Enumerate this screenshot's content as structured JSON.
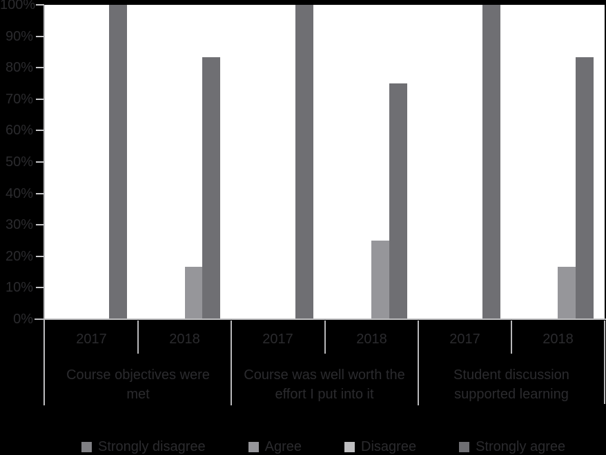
{
  "colors": {
    "page_background": "#000000",
    "plot_background": "#ffffff",
    "text": "#2b2b2e",
    "axis_lines": "#bdbdbf"
  },
  "chart_data": {
    "type": "bar",
    "title": "",
    "xlabel": "",
    "ylabel": "",
    "ylim": [
      0,
      100
    ],
    "ytick_step": 10,
    "ytick_labels": [
      "0%",
      "10%",
      "20%",
      "30%",
      "40%",
      "50%",
      "60%",
      "70%",
      "80%",
      "90%",
      "100%"
    ],
    "grid": false,
    "legend_position": "bottom",
    "groups": [
      {
        "label": "Course objectives were met",
        "label_lines": [
          "Course objectives were",
          "met"
        ],
        "years": [
          "2017",
          "2018"
        ]
      },
      {
        "label": "Course was well worth the effort I put into it",
        "label_lines": [
          "Course was well worth the",
          "effort I put into it"
        ],
        "years": [
          "2017",
          "2018"
        ]
      },
      {
        "label": "Student discussion supported learning",
        "label_lines": [
          "Student discussion",
          "supported learning"
        ],
        "years": [
          "2017",
          "2018"
        ]
      }
    ],
    "x_columns": [
      "2017",
      "2018",
      "2017",
      "2018",
      "2017",
      "2018"
    ],
    "series": [
      {
        "name": "Strongly disagree",
        "color": "#808084",
        "values": [
          0,
          0,
          0,
          0,
          0,
          0
        ]
      },
      {
        "name": "Disagree",
        "color": "#bfbfc1",
        "values": [
          0,
          0,
          0,
          0,
          0,
          0
        ]
      },
      {
        "name": "Agree",
        "color": "#96969a",
        "values": [
          0,
          16.67,
          0,
          25,
          0,
          16.67
        ]
      },
      {
        "name": "Strongly agree",
        "color": "#6f6f73",
        "values": [
          100,
          83.33,
          100,
          75,
          100,
          83.33
        ]
      }
    ],
    "legend": [
      {
        "name": "Strongly disagree",
        "color": "#808084"
      },
      {
        "name": "Agree",
        "color": "#96969a"
      },
      {
        "name": "Disagree",
        "color": "#bfbfc1"
      },
      {
        "name": "Strongly agree",
        "color": "#6f6f73"
      }
    ]
  }
}
